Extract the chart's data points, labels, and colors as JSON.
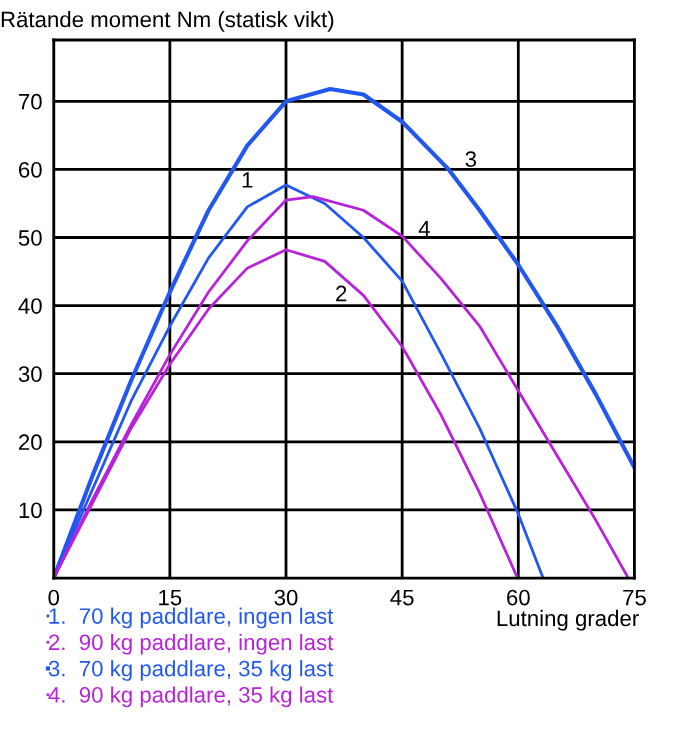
{
  "chart_data": {
    "type": "line",
    "ylabel": "Rätande moment Nm (statisk vikt)",
    "xlabel": "Lutning grader",
    "xlim": [
      0,
      75
    ],
    "xticks": [
      0,
      15,
      30,
      45,
      60,
      75
    ],
    "ylim": [
      0,
      79
    ],
    "yticks": [
      10,
      20,
      30,
      40,
      50,
      60,
      70
    ],
    "grid": true,
    "legend": "bottom left",
    "series": [
      {
        "name": "1.  70 kg paddlare, ingen last",
        "color": "#2258f0",
        "x": [
          0,
          5,
          10,
          15,
          20,
          25,
          30,
          35,
          40,
          45,
          50,
          55,
          60,
          63.2
        ],
        "values": [
          0,
          13,
          26,
          37,
          47,
          54.5,
          57.7,
          55,
          50,
          43.6,
          33,
          22,
          9.4,
          0
        ]
      },
      {
        "name": "2.  90 kg paddlare, ingen last",
        "color": "#b822d8",
        "x": [
          0,
          5,
          10,
          15,
          20,
          25,
          30,
          35,
          40,
          45,
          50,
          55,
          59.9
        ],
        "values": [
          0,
          11,
          22,
          31.4,
          39.5,
          45.5,
          48.2,
          46.5,
          41.5,
          34,
          24,
          12.5,
          0
        ]
      },
      {
        "name": "3.  70 kg paddlare, 35 kg last",
        "color": "#2258f0",
        "x": [
          0,
          5,
          10,
          15,
          20,
          25,
          30,
          35.7,
          40,
          45,
          51,
          55,
          60,
          65,
          70,
          75
        ],
        "values": [
          0,
          15,
          29,
          42,
          54,
          63.5,
          70,
          71.8,
          71,
          67,
          60,
          54,
          46,
          37,
          27,
          16.2
        ]
      },
      {
        "name": "4.  90 kg paddlare, 35 kg last",
        "color": "#b822d8",
        "x": [
          0,
          5,
          10,
          15,
          20,
          25,
          30,
          33.5,
          40,
          45,
          50,
          55,
          60,
          65,
          70,
          74.2
        ],
        "values": [
          0,
          11.5,
          22.5,
          32.8,
          42,
          49.5,
          55.5,
          56,
          54,
          50.2,
          44,
          37,
          27.5,
          18,
          8.5,
          0
        ]
      }
    ],
    "annotations": [
      {
        "text": "1",
        "x": 25,
        "y": 54.5
      },
      {
        "text": "2",
        "x": 40,
        "y": 41.5
      },
      {
        "text": "3",
        "x": 51,
        "y": 60
      },
      {
        "text": "4",
        "x": 45,
        "y": 50.2
      }
    ]
  }
}
